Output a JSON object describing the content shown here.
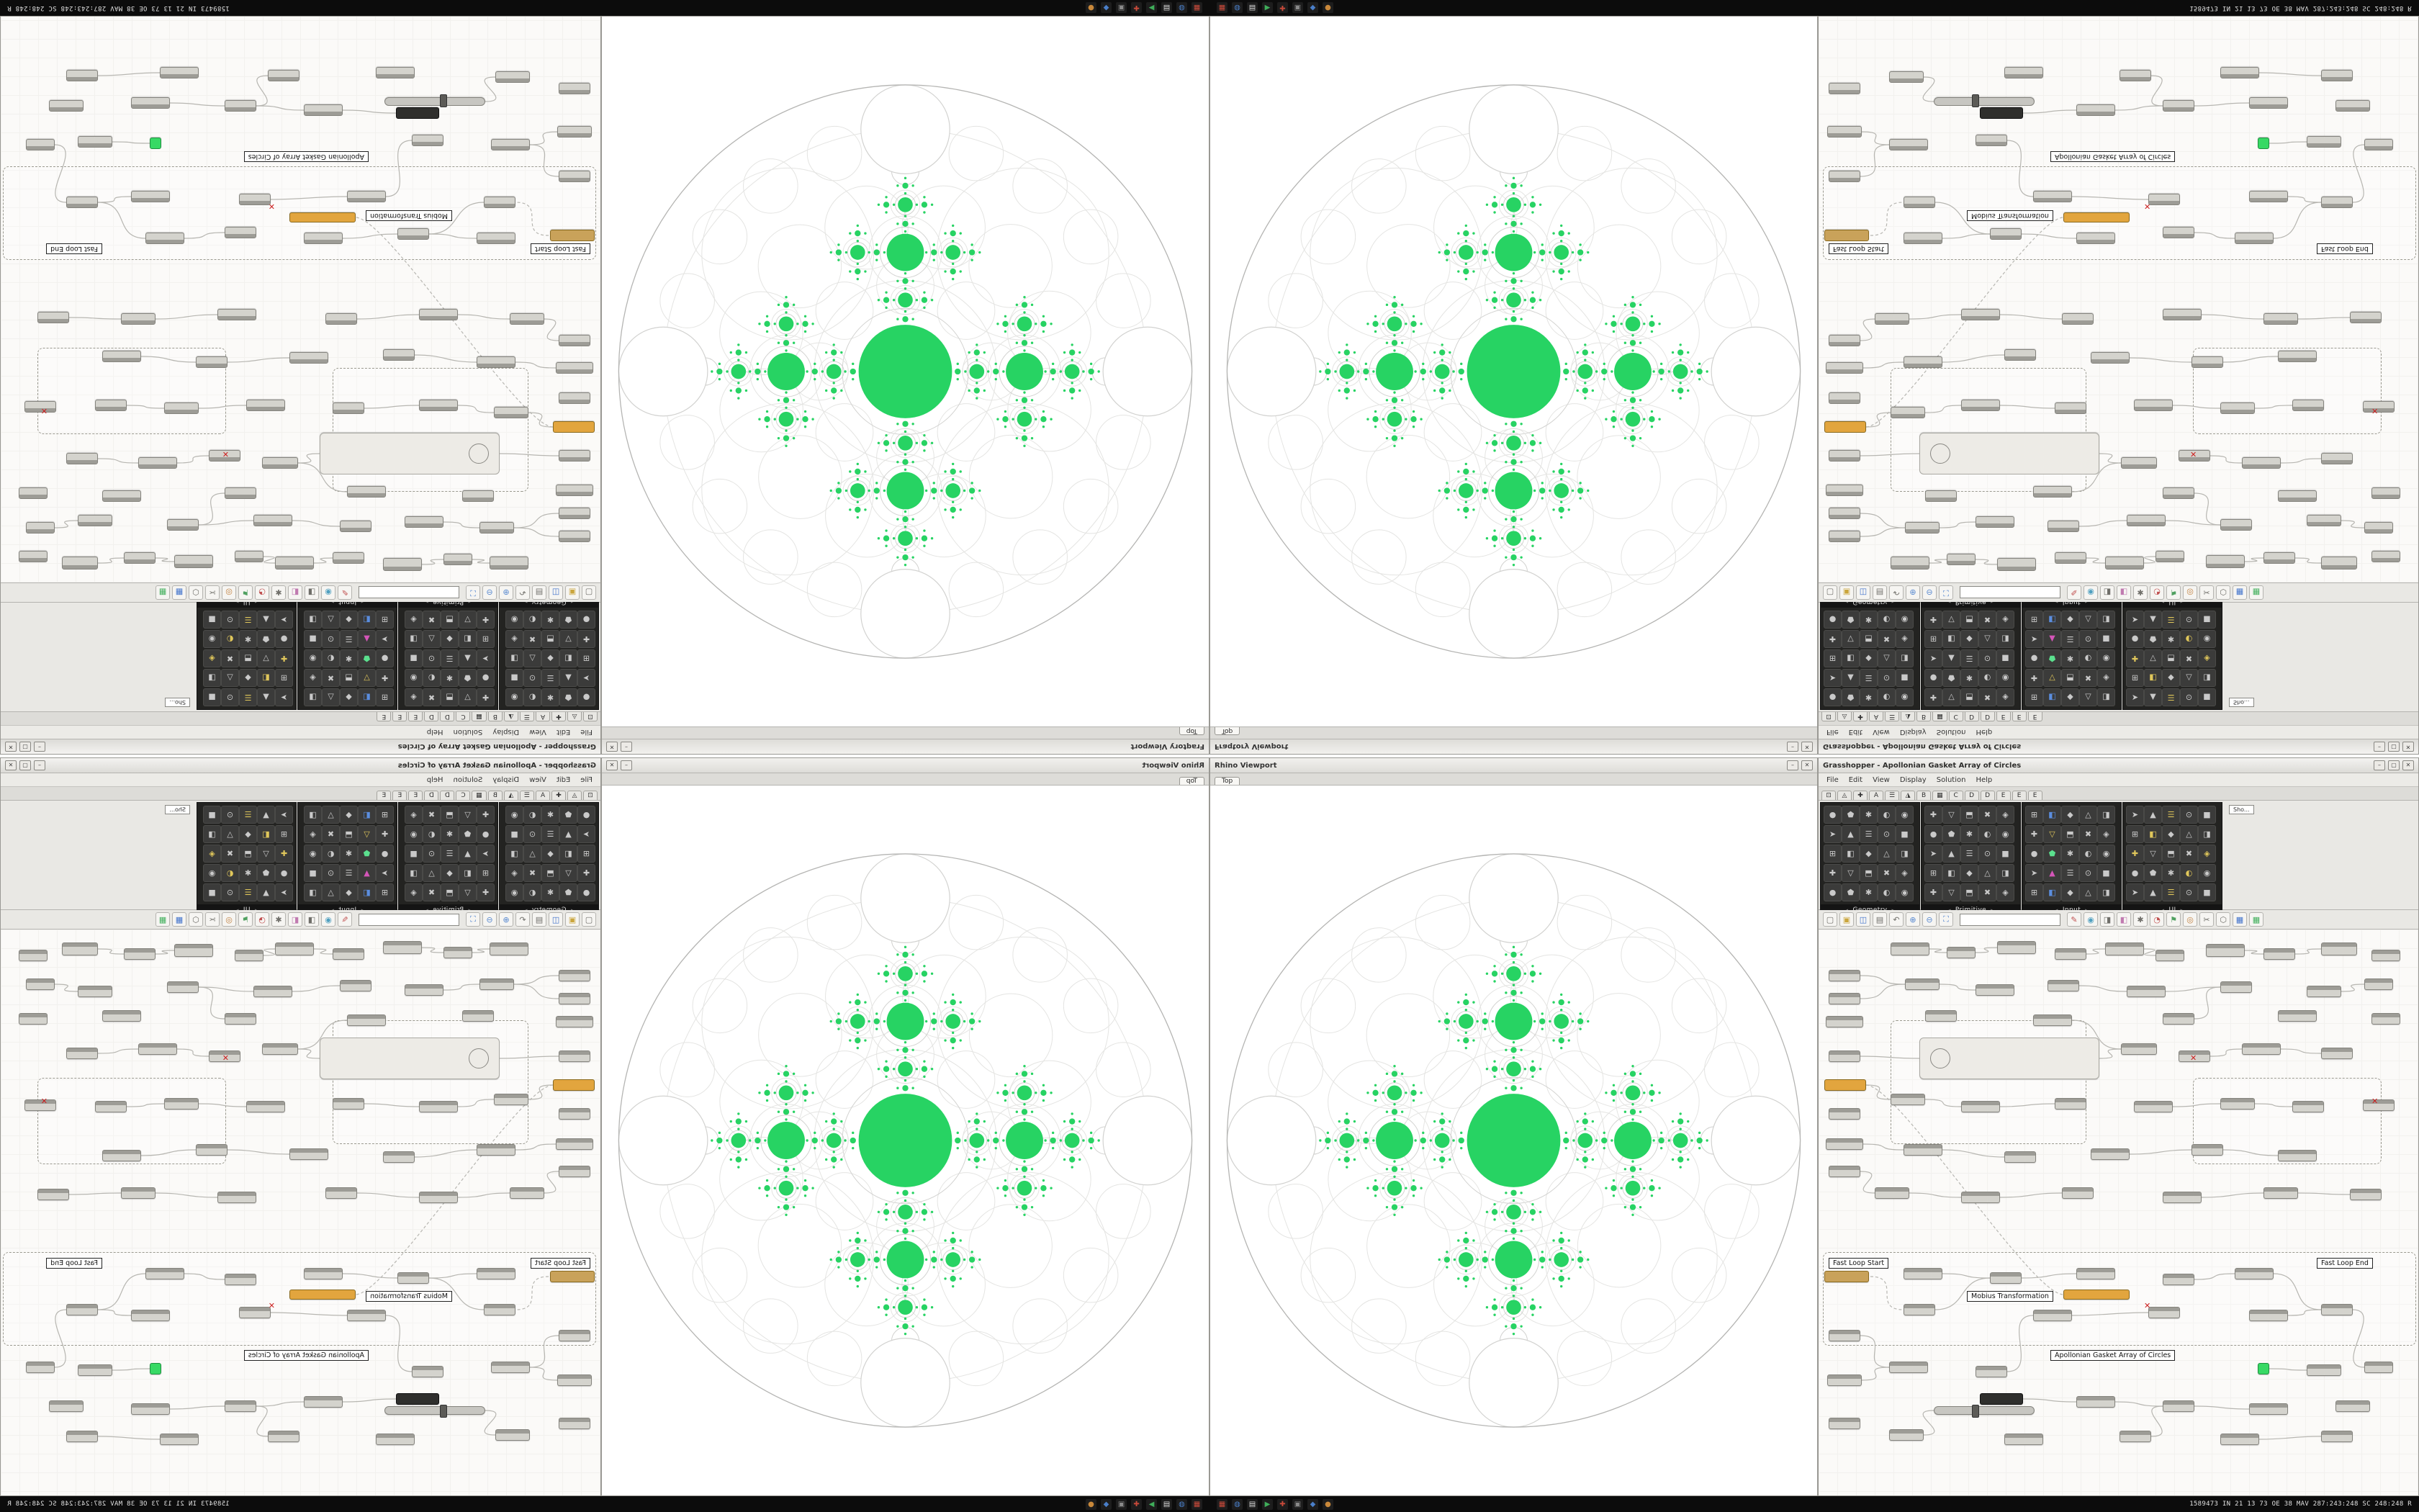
{
  "app": {
    "accent_green": "#27d363"
  },
  "statusbar": {
    "status_text": "1589473 IN 21 13 73 OE 38 MAV 287:243:248 SC 248:248 R",
    "icons": [
      {
        "name": "tray-grid-icon",
        "glyph": "▦",
        "color": "#c94a3a"
      },
      {
        "name": "tray-browser-icon",
        "glyph": "◍",
        "color": "#4a7fc9"
      },
      {
        "name": "tray-files-icon",
        "glyph": "▤",
        "color": "#d8d8d8"
      },
      {
        "name": "tray-media-icon",
        "glyph": "▶",
        "color": "#3fae5a"
      },
      {
        "name": "tray-chat-icon",
        "glyph": "✚",
        "color": "#c94a3a"
      },
      {
        "name": "tray-term-icon",
        "glyph": "▣",
        "color": "#8a8a8a"
      },
      {
        "name": "tray-mail-icon",
        "glyph": "◆",
        "color": "#4a7fc9"
      },
      {
        "name": "tray-clock-icon",
        "glyph": "●",
        "color": "#c9883a"
      }
    ]
  },
  "viewport": {
    "titles": [
      "Fraqtory Viewport",
      "Rhino Viewport"
    ],
    "tab": "Top",
    "buttons": [
      "–",
      "✕"
    ]
  },
  "gh": {
    "title": "Grasshopper - Apollonian Gasket Array of Circles",
    "buttons": [
      "–",
      "▢",
      "✕"
    ],
    "menus": [
      "File",
      "Edit",
      "View",
      "Display",
      "Solution",
      "Help"
    ],
    "category_tabs": [
      "⊡",
      "◬",
      "✚",
      "A",
      "☰",
      "◮",
      "B",
      "▦",
      "C",
      "D",
      "D",
      "E",
      "E",
      "E"
    ],
    "palette_groups": [
      {
        "label": "Geometry"
      },
      {
        "label": "Primitive"
      },
      {
        "label": "Input"
      },
      {
        "label": "UI"
      }
    ],
    "palette_overflow_label": "Sho...",
    "toolbar": {
      "search_placeholder": "",
      "icons_left": [
        "new-doc-icon",
        "open-icon",
        "save-icon",
        "print-icon",
        "undo-icon",
        "zoom-in-icon",
        "zoom-out-icon",
        "zoom-fit-icon"
      ],
      "icons_right": [
        "sketch-icon",
        "eye-icon",
        "camera-icon",
        "paint-icon",
        "gear-icon",
        "pie-icon",
        "flag-icon",
        "target-icon",
        "scissors-icon",
        "cluster-icon",
        "table-blue-icon",
        "table-green-icon"
      ]
    },
    "canvas_labels": [
      "Fast Loop Start",
      "Mobius Transformation",
      "Fast Loop End",
      "Apollonian Gasket Array of Circles"
    ]
  }
}
